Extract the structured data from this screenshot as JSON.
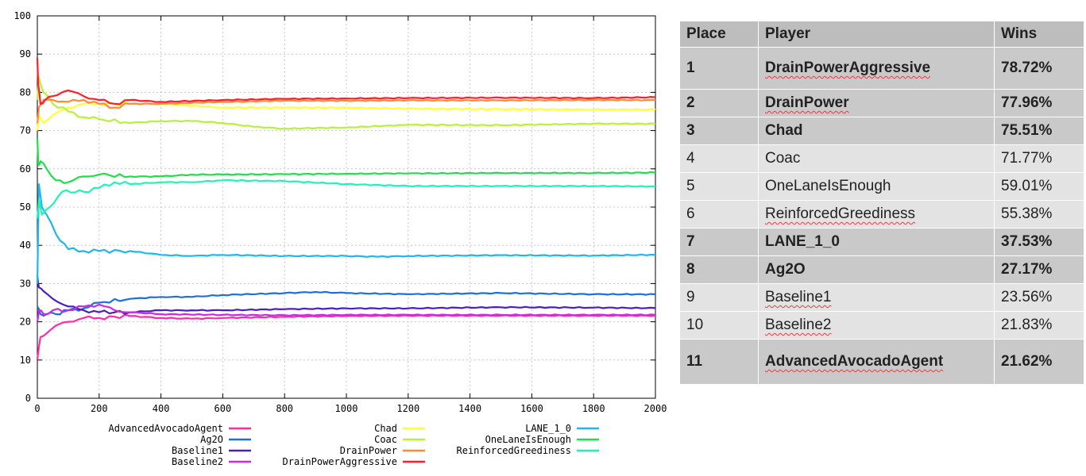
{
  "chart_data": {
    "type": "line",
    "title": "",
    "xlabel": "",
    "ylabel": "",
    "xlim": [
      0,
      2000
    ],
    "ylim": [
      0,
      100
    ],
    "xticks": [
      "0",
      "200",
      "400",
      "600",
      "800",
      "1000",
      "1200",
      "1400",
      "1600",
      "1800",
      "2000"
    ],
    "yticks": [
      "0",
      "10",
      "20",
      "30",
      "40",
      "50",
      "60",
      "70",
      "80",
      "90",
      "100"
    ],
    "grid": true,
    "legend": "bottom",
    "series": [
      {
        "name": "AdvancedAvocadoAgent",
        "color": "#ff2ca6",
        "x": [
          0,
          10,
          30,
          60,
          100,
          150,
          200,
          300,
          400,
          500,
          600,
          800,
          1000,
          1200,
          1500,
          1800,
          2000
        ],
        "y": [
          10,
          16,
          17,
          19,
          20,
          21,
          21,
          21.5,
          21,
          20.8,
          21,
          21.3,
          21.5,
          21.6,
          21.6,
          21.6,
          21.6
        ]
      },
      {
        "name": "Ag2O",
        "color": "#1e6fd9",
        "x": [
          0,
          10,
          30,
          60,
          100,
          150,
          200,
          300,
          400,
          500,
          600,
          800,
          900,
          1000,
          1200,
          1500,
          1800,
          2000
        ],
        "y": [
          24,
          22,
          22,
          22,
          23,
          23.5,
          25,
          26,
          26.5,
          26.5,
          27,
          27.5,
          27.8,
          27.5,
          27.2,
          27.5,
          27.2,
          27.17
        ]
      },
      {
        "name": "Baseline1",
        "color": "#4b1fbf",
        "x": [
          0,
          5,
          20,
          50,
          100,
          150,
          200,
          300,
          400,
          500,
          600,
          800,
          1000,
          1200,
          1500,
          1800,
          2000
        ],
        "y": [
          32,
          29,
          28,
          26,
          24,
          23,
          22.5,
          22.5,
          23,
          23,
          23,
          23.3,
          23.5,
          23.5,
          23.8,
          23.7,
          23.56
        ]
      },
      {
        "name": "Baseline2",
        "color": "#c92be0",
        "x": [
          0,
          5,
          20,
          50,
          100,
          150,
          200,
          250,
          300,
          400,
          600,
          800,
          1000,
          1200,
          1500,
          1800,
          2000
        ],
        "y": [
          20,
          23,
          22,
          23,
          23,
          24,
          24.5,
          23,
          22.5,
          22,
          21.8,
          21.7,
          21.8,
          21.8,
          21.8,
          21.8,
          21.83
        ]
      },
      {
        "name": "Chad",
        "color": "#ffff3a",
        "x": [
          0,
          5,
          20,
          50,
          100,
          150,
          200,
          300,
          400,
          600,
          800,
          1000,
          1200,
          1500,
          1800,
          2000
        ],
        "y": [
          70,
          74,
          72,
          74,
          76,
          77,
          77,
          77,
          77,
          76,
          76,
          76,
          75.7,
          75.6,
          75.5,
          75.51
        ]
      },
      {
        "name": "Coac",
        "color": "#b8f03a",
        "x": [
          0,
          5,
          20,
          50,
          100,
          150,
          200,
          300,
          400,
          500,
          600,
          700,
          800,
          1000,
          1200,
          1500,
          1800,
          2000
        ],
        "y": [
          78,
          84,
          80,
          77,
          75,
          73.5,
          73,
          72,
          72.5,
          72.5,
          72,
          71,
          70.5,
          70.8,
          71.5,
          71.4,
          71.8,
          71.77
        ]
      },
      {
        "name": "DrainPower",
        "color": "#ff8a3a",
        "x": [
          0,
          5,
          20,
          50,
          100,
          150,
          200,
          250,
          300,
          400,
          600,
          800,
          1000,
          1200,
          1500,
          1800,
          2000
        ],
        "y": [
          72,
          76,
          78,
          78,
          77.5,
          78,
          77,
          76,
          77,
          77,
          77.5,
          77.8,
          77.8,
          77.9,
          77.9,
          78,
          77.96
        ]
      },
      {
        "name": "DrainPowerAggressive",
        "color": "#ff1f2a",
        "x": [
          0,
          3,
          10,
          25,
          50,
          80,
          100,
          150,
          200,
          250,
          300,
          400,
          600,
          800,
          1000,
          1200,
          1500,
          1800,
          2000
        ],
        "y": [
          89,
          82,
          77,
          78,
          79,
          80,
          80.5,
          79,
          78,
          77,
          78,
          77.5,
          78,
          78.3,
          78.4,
          78.5,
          78.6,
          78.5,
          78.72
        ]
      },
      {
        "name": "LANE_1_0",
        "color": "#1fb6ee",
        "x": [
          0,
          5,
          15,
          30,
          60,
          100,
          150,
          200,
          300,
          400,
          500,
          600,
          800,
          1000,
          1100,
          1200,
          1500,
          1800,
          2000
        ],
        "y": [
          30,
          56,
          50,
          48,
          43,
          39,
          38.5,
          38.5,
          38.5,
          37.5,
          37.2,
          37.5,
          37.2,
          37.2,
          37,
          37.2,
          37.4,
          37.3,
          37.53
        ]
      },
      {
        "name": "OneLaneIsEnough",
        "color": "#1fe04a",
        "x": [
          0,
          3,
          10,
          30,
          60,
          100,
          150,
          200,
          300,
          400,
          500,
          600,
          800,
          1000,
          1200,
          1500,
          1800,
          2000
        ],
        "y": [
          68,
          61,
          62,
          60,
          57,
          56.5,
          58,
          58.5,
          58,
          58,
          58.5,
          58.5,
          58.6,
          58.7,
          58.8,
          58.9,
          58.9,
          59.01
        ]
      },
      {
        "name": "ReinforcedGreediness",
        "color": "#21f2b8",
        "x": [
          0,
          5,
          15,
          40,
          80,
          150,
          200,
          250,
          300,
          400,
          500,
          600,
          800,
          1000,
          1200,
          1500,
          1800,
          2000
        ],
        "y": [
          47,
          52,
          48,
          50,
          54,
          54,
          55,
          56.5,
          56,
          56.5,
          56.5,
          57,
          56.8,
          56,
          55.5,
          55.5,
          55.5,
          55.38
        ]
      }
    ]
  },
  "table": {
    "headers": {
      "place": "Place",
      "player": "Player",
      "wins": "Wins"
    },
    "rows": [
      {
        "place": "1",
        "player": "DrainPowerAggressive",
        "wins": "78.72%"
      },
      {
        "place": "2",
        "player": "DrainPower",
        "wins": "77.96%"
      },
      {
        "place": "3",
        "player": "Chad",
        "wins": "75.51%"
      },
      {
        "place": "4",
        "player": "Coac",
        "wins": "71.77%"
      },
      {
        "place": "5",
        "player": "OneLaneIsEnough",
        "wins": "59.01%"
      },
      {
        "place": "6",
        "player": "ReinforcedGreediness",
        "wins": "55.38%"
      },
      {
        "place": "7",
        "player": "LANE_1_0",
        "wins": "37.53%"
      },
      {
        "place": "8",
        "player": "Ag2O",
        "wins": "27.17%"
      },
      {
        "place": "9",
        "player": "Baseline1",
        "wins": "23.56%"
      },
      {
        "place": "10",
        "player": "Baseline2",
        "wins": "21.83%"
      },
      {
        "place": "11",
        "player": "AdvancedAvocadoAgent",
        "wins": "21.62%"
      }
    ]
  }
}
